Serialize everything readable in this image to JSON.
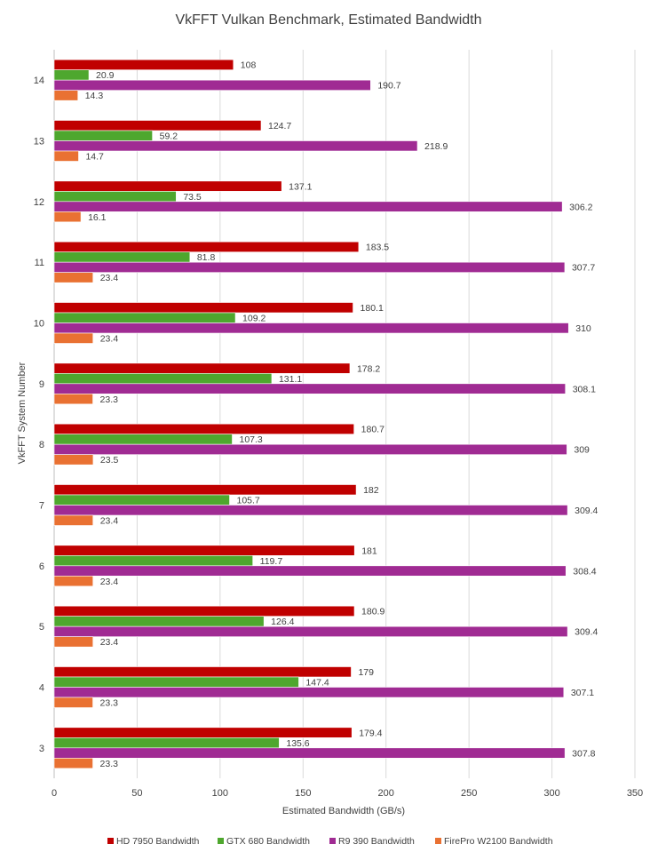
{
  "chart_data": {
    "type": "bar",
    "orientation": "horizontal",
    "title": "VkFFT Vulkan Benchmark, Estimated Bandwidth",
    "xlabel": "Estimated Bandwidth (GB/s)",
    "ylabel": "VkFFT System Number",
    "xlim": [
      0,
      350
    ],
    "xticks": [
      0,
      50,
      100,
      150,
      200,
      250,
      300,
      350
    ],
    "grid": "vertical",
    "legend_position": "bottom",
    "categories": [
      "14",
      "13",
      "12",
      "11",
      "10",
      "9",
      "8",
      "7",
      "6",
      "5",
      "4",
      "3"
    ],
    "series": [
      {
        "name": "HD 7950 Bandwidth",
        "color": "#c00000",
        "values": [
          108,
          124.7,
          137.1,
          183.5,
          180.1,
          178.2,
          180.7,
          182,
          181,
          180.9,
          179,
          179.4
        ],
        "labels": [
          "108",
          "124.7",
          "137.1",
          "183.5",
          "180.1",
          "178.2",
          "180.7",
          "182",
          "181",
          "180.9",
          "179",
          "179.4"
        ]
      },
      {
        "name": "GTX 680 Bandwidth",
        "color": "#4ea72e",
        "values": [
          20.9,
          59.2,
          73.5,
          81.8,
          109.2,
          131.1,
          107.3,
          105.7,
          119.7,
          126.4,
          147.4,
          135.6
        ],
        "labels": [
          "20.9",
          "59.2",
          "73.5",
          "81.8",
          "109.2",
          "131.1",
          "107.3",
          "105.7",
          "119.7",
          "126.4",
          "147.4",
          "135.6"
        ]
      },
      {
        "name": "R9 390 Bandwidth",
        "color": "#a02b93",
        "values": [
          190.7,
          218.9,
          306.2,
          307.7,
          310,
          308.1,
          309,
          309.4,
          308.4,
          309.4,
          307.1,
          307.8
        ],
        "labels": [
          "190.7",
          "218.9",
          "306.2",
          "307.7",
          "310",
          "308.1",
          "309",
          "309.4",
          "308.4",
          "309.4",
          "307.1",
          "307.8"
        ]
      },
      {
        "name": "FirePro W2100 Bandwidth",
        "color": "#e97132",
        "values": [
          14.3,
          14.7,
          16.1,
          23.4,
          23.4,
          23.3,
          23.5,
          23.4,
          23.4,
          23.4,
          23.3,
          23.3
        ],
        "labels": [
          "14.3",
          "14.7",
          "16.1",
          "23.4",
          "23.4",
          "23.3",
          "23.5",
          "23.4",
          "23.4",
          "23.4",
          "23.3",
          "23.3"
        ]
      }
    ]
  }
}
